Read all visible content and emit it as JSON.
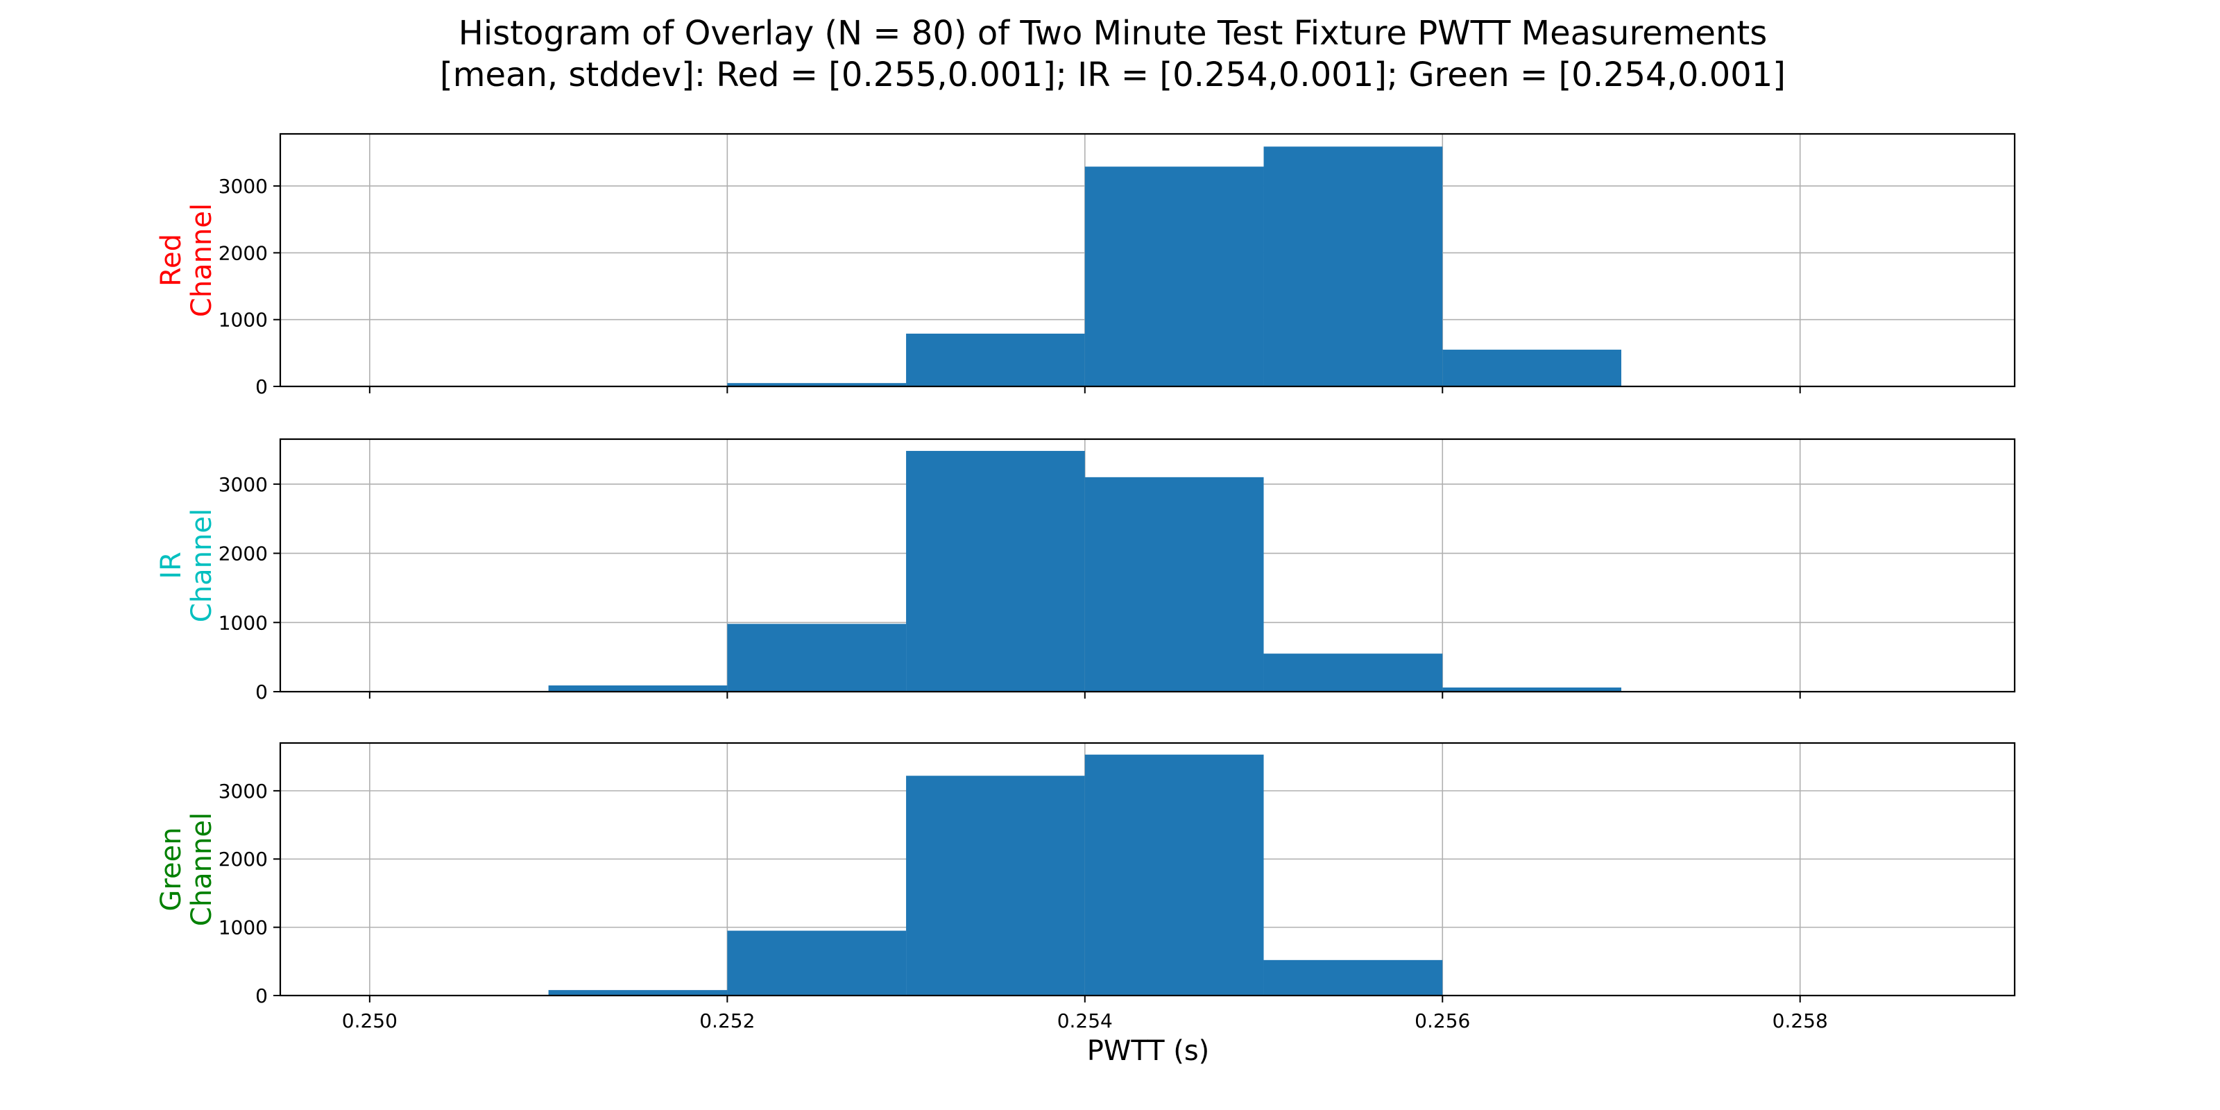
{
  "figure": {
    "title_line1": "Histogram of Overlay (N = 80) of Two Minute Test Fixture PWTT Measurements",
    "title_line2": "[mean, stddev]: Red = [0.255,0.001]; IR = [0.254,0.001]; Green = [0.254,0.001]",
    "xlabel": "PWTT (s)",
    "bar_color": "#1f77b4",
    "grid": true
  },
  "chart_data": [
    {
      "type": "bar",
      "ylabel": [
        "Red",
        "Channel"
      ],
      "ylabel_color": "#ff0000",
      "xlim": [
        0.2495,
        0.2592
      ],
      "ylim": [
        0,
        3780
      ],
      "xticks": [
        0.25,
        0.252,
        0.254,
        0.256,
        0.258
      ],
      "xtick_labels": [],
      "yticks": [
        0,
        1000,
        2000,
        3000
      ],
      "ytick_labels": [
        "0",
        "1000",
        "2000",
        "3000"
      ],
      "bins": [
        {
          "x0": 0.252,
          "x1": 0.253,
          "count": 50
        },
        {
          "x0": 0.253,
          "x1": 0.254,
          "count": 790
        },
        {
          "x0": 0.254,
          "x1": 0.255,
          "count": 3290
        },
        {
          "x0": 0.255,
          "x1": 0.256,
          "count": 3590
        },
        {
          "x0": 0.256,
          "x1": 0.257,
          "count": 550
        }
      ]
    },
    {
      "type": "bar",
      "ylabel": [
        "IR",
        "Channel"
      ],
      "ylabel_color": "#00bfbf",
      "xlim": [
        0.2495,
        0.2592
      ],
      "ylim": [
        0,
        3650
      ],
      "xticks": [
        0.25,
        0.252,
        0.254,
        0.256,
        0.258
      ],
      "xtick_labels": [],
      "yticks": [
        0,
        1000,
        2000,
        3000
      ],
      "ytick_labels": [
        "0",
        "1000",
        "2000",
        "3000"
      ],
      "bins": [
        {
          "x0": 0.251,
          "x1": 0.252,
          "count": 90
        },
        {
          "x0": 0.252,
          "x1": 0.253,
          "count": 980
        },
        {
          "x0": 0.253,
          "x1": 0.254,
          "count": 3480
        },
        {
          "x0": 0.254,
          "x1": 0.255,
          "count": 3100
        },
        {
          "x0": 0.255,
          "x1": 0.256,
          "count": 550
        },
        {
          "x0": 0.256,
          "x1": 0.257,
          "count": 60
        }
      ]
    },
    {
      "type": "bar",
      "ylabel": [
        "Green",
        "Channel"
      ],
      "ylabel_color": "#008000",
      "xlim": [
        0.2495,
        0.2592
      ],
      "ylim": [
        0,
        3700
      ],
      "xticks": [
        0.25,
        0.252,
        0.254,
        0.256,
        0.258
      ],
      "xtick_labels": [
        "0.250",
        "0.252",
        "0.254",
        "0.256",
        "0.258"
      ],
      "yticks": [
        0,
        1000,
        2000,
        3000
      ],
      "ytick_labels": [
        "0",
        "1000",
        "2000",
        "3000"
      ],
      "bins": [
        {
          "x0": 0.251,
          "x1": 0.252,
          "count": 80
        },
        {
          "x0": 0.252,
          "x1": 0.253,
          "count": 950
        },
        {
          "x0": 0.253,
          "x1": 0.254,
          "count": 3220
        },
        {
          "x0": 0.254,
          "x1": 0.255,
          "count": 3530
        },
        {
          "x0": 0.255,
          "x1": 0.256,
          "count": 520
        }
      ]
    }
  ]
}
